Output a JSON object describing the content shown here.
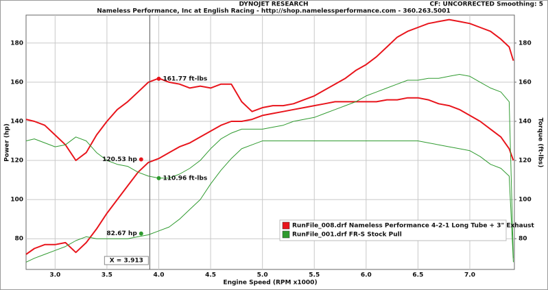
{
  "chart_data": {
    "type": "line",
    "title": "DYNOJET RESEARCH",
    "subtitle": "Nameless Performance, Inc at English Racing - http://shop.namelessperformance.com - 360.263.5001",
    "corner_note": "CF: UNCORRECTED  Smoothing: 5",
    "x_label": "Engine Speed (RPM x1000)",
    "y_label": "Power (hp)",
    "y2_label": "Torque (ft-lbs)",
    "x": [
      2.72,
      2.8,
      2.9,
      3.0,
      3.1,
      3.2,
      3.3,
      3.4,
      3.5,
      3.6,
      3.7,
      3.8,
      3.9,
      4.0,
      4.1,
      4.2,
      4.3,
      4.4,
      4.5,
      4.6,
      4.7,
      4.8,
      4.9,
      5.0,
      5.1,
      5.2,
      5.3,
      5.4,
      5.5,
      5.6,
      5.7,
      5.8,
      5.9,
      6.0,
      6.1,
      6.2,
      6.3,
      6.4,
      6.5,
      6.6,
      6.7,
      6.8,
      6.9,
      7.0,
      7.1,
      7.2,
      7.3,
      7.38,
      7.42
    ],
    "series": [
      {
        "name": "RunFile_008.drf Nameless Performance 4-2-1 Long Tube + 3\" Exhaust",
        "color": "#e8141b",
        "power": [
          72,
          75,
          77,
          77,
          78,
          73,
          78,
          85,
          93,
          100,
          107,
          114,
          119,
          121,
          124,
          127,
          129,
          132,
          135,
          138,
          140,
          140,
          141,
          143,
          144,
          145,
          146,
          147,
          148,
          149,
          150,
          150,
          150,
          150,
          150,
          151,
          151,
          152,
          152,
          151,
          149,
          148,
          146,
          143,
          140,
          136,
          132,
          126,
          120
        ],
        "torque": [
          141,
          140,
          138,
          133,
          128,
          120,
          124,
          133,
          140,
          146,
          150,
          155,
          160,
          162,
          160,
          159,
          157,
          158,
          157,
          159,
          159,
          150,
          145,
          147,
          148,
          148,
          149,
          151,
          153,
          156,
          159,
          162,
          166,
          169,
          173,
          178,
          183,
          186,
          188,
          190,
          191,
          192,
          191,
          190,
          188,
          186,
          182,
          178,
          171
        ]
      },
      {
        "name": "RunFile_001.drf FR-S Stock Pull",
        "color": "#2e9a2e",
        "power": [
          68,
          70,
          72,
          74,
          76,
          79,
          81,
          80,
          80,
          80,
          80,
          81,
          82,
          84,
          86,
          90,
          95,
          100,
          108,
          115,
          121,
          126,
          128,
          130,
          130,
          130,
          130,
          130,
          130,
          130,
          130,
          130,
          130,
          130,
          130,
          130,
          130,
          130,
          130,
          129,
          128,
          127,
          126,
          125,
          122,
          118,
          116,
          112,
          68
        ],
        "torque": [
          130,
          131,
          129,
          127,
          128,
          132,
          130,
          124,
          120,
          118,
          117,
          114,
          112,
          111,
          111,
          113,
          116,
          120,
          126,
          131,
          134,
          136,
          136,
          136,
          137,
          138,
          140,
          141,
          142,
          144,
          146,
          148,
          150,
          153,
          155,
          157,
          159,
          161,
          161,
          162,
          162,
          163,
          164,
          163,
          160,
          157,
          155,
          150,
          70
        ]
      }
    ],
    "xlim": [
      2.72,
      7.43
    ],
    "ylim": [
      64.3,
      194.3
    ],
    "y2lim": [
      64.3,
      194.3
    ],
    "xticks": [
      {
        "value": 3,
        "label": "3.0"
      },
      {
        "value": 3.5,
        "label": "3.5"
      },
      {
        "value": 4,
        "label": "4.0"
      },
      {
        "value": 4.5,
        "label": "4.5"
      },
      {
        "value": 5,
        "label": "5.0"
      },
      {
        "value": 5.5,
        "label": "5.5"
      },
      {
        "value": 6,
        "label": "6.0"
      },
      {
        "value": 6.5,
        "label": "6.5"
      },
      {
        "value": 7,
        "label": "7.0"
      }
    ],
    "yticks": [
      80,
      100,
      120,
      140,
      160,
      180
    ],
    "y2ticks": [
      80,
      100,
      120,
      140,
      160,
      180
    ],
    "grid": true,
    "cursor": {
      "x": 3.913,
      "label": "X = 3.913"
    },
    "annotations": [
      {
        "text": "161.77 ft-lbs",
        "x": 4.0,
        "y": 161.77,
        "axis": "y2",
        "series": 0
      },
      {
        "text": "120.53 hp",
        "x": 3.83,
        "y": 120.53,
        "axis": "y",
        "series": 0
      },
      {
        "text": "110.96 ft-lbs",
        "x": 4.0,
        "y": 110.96,
        "axis": "y2",
        "series": 1
      },
      {
        "text": "82.67 hp",
        "x": 3.83,
        "y": 82.67,
        "axis": "y",
        "series": 1
      }
    ]
  }
}
